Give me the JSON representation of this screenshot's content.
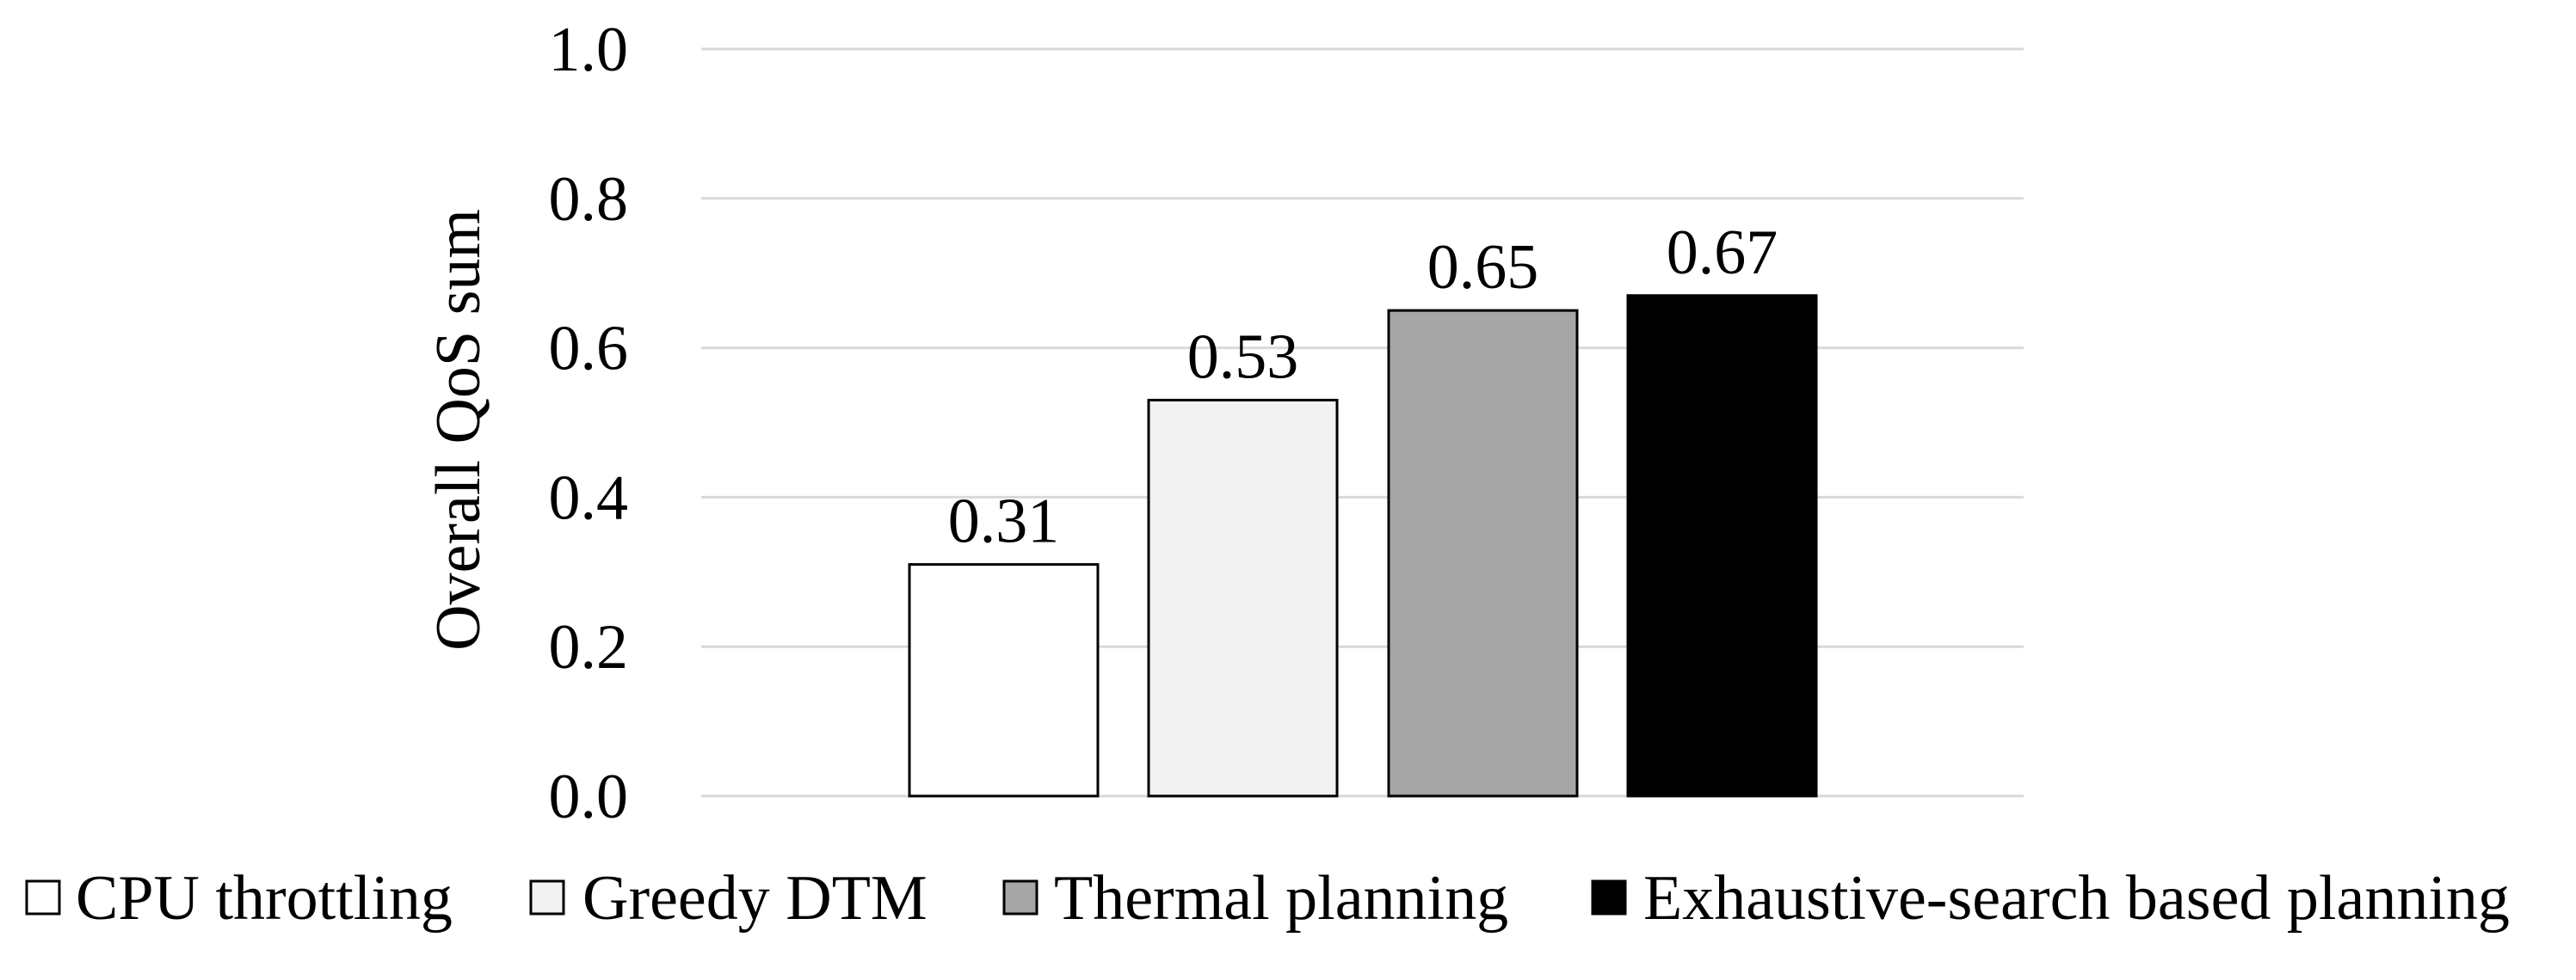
{
  "chart_data": {
    "type": "bar",
    "title": "",
    "xlabel": "",
    "ylabel": "Overall QoS sum",
    "ylim": [
      0,
      1.0
    ],
    "yticks": [
      "0.0",
      "0.2",
      "0.4",
      "0.6",
      "0.8",
      "1.0"
    ],
    "grid": "horizontal",
    "legend_position": "bottom",
    "series": [
      {
        "name": "CPU throttling",
        "value": 0.31,
        "label": "0.31",
        "color": "#ffffff"
      },
      {
        "name": "Greedy DTM",
        "value": 0.53,
        "label": "0.53",
        "color": "#f2f2f2"
      },
      {
        "name": "Thermal planning",
        "value": 0.65,
        "label": "0.65",
        "color": "#a6a6a6"
      },
      {
        "name": "Exhaustive-search based planning",
        "value": 0.67,
        "label": "0.67",
        "color": "#000000"
      }
    ],
    "colors": {
      "gridline": "#d9d9d9",
      "bar_outline": "#000000",
      "text": "#000000"
    }
  }
}
